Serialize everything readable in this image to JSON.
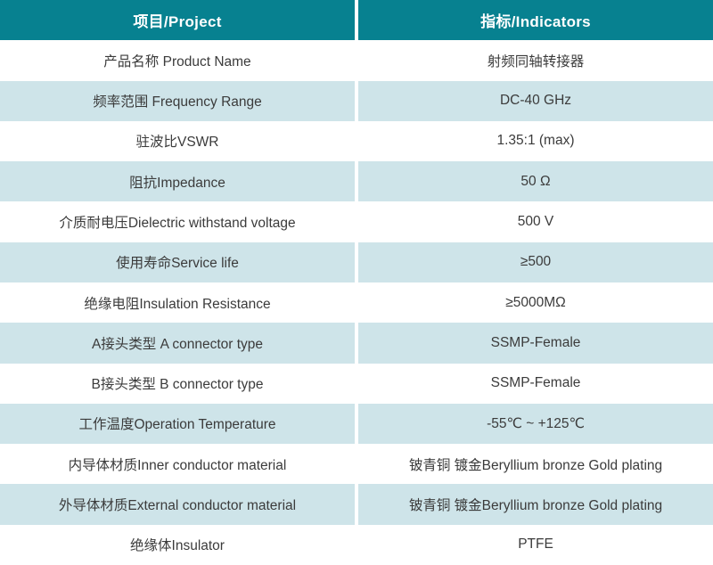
{
  "colors": {
    "accent": "#078190",
    "stripe": "#cee4e9",
    "header_text": "#ffffff",
    "body_text": "#3b3b3b"
  },
  "header": {
    "project": "项目/Project",
    "indicators": "指标/Indicators"
  },
  "rows": [
    {
      "project": "产品名称 Product Name",
      "indicator": "射频同轴转接器"
    },
    {
      "project": "频率范围 Frequency Range",
      "indicator": "DC-40 GHz"
    },
    {
      "project": "驻波比VSWR",
      "indicator": "1.35:1 (max)"
    },
    {
      "project": "阻抗Impedance",
      "indicator": "50 Ω"
    },
    {
      "project": "介质耐电压Dielectric withstand voltage",
      "indicator": "500 V"
    },
    {
      "project": "使用寿命Service life",
      "indicator": "≥500"
    },
    {
      "project": "绝缘电阻Insulation Resistance",
      "indicator": "≥5000MΩ"
    },
    {
      "project": "A接头类型 A connector type",
      "indicator": "SSMP-Female"
    },
    {
      "project": "B接头类型 B connector type",
      "indicator": "SSMP-Female"
    },
    {
      "project": "工作温度Operation Temperature",
      "indicator": "-55℃ ~ +125℃"
    },
    {
      "project": "内导体材质Inner conductor material",
      "indicator": "铍青铜 镀金Beryllium bronze Gold plating"
    },
    {
      "project": "外导体材质External conductor material",
      "indicator": "铍青铜 镀金Beryllium bronze Gold plating"
    },
    {
      "project": "绝缘体Insulator",
      "indicator": "PTFE"
    }
  ]
}
